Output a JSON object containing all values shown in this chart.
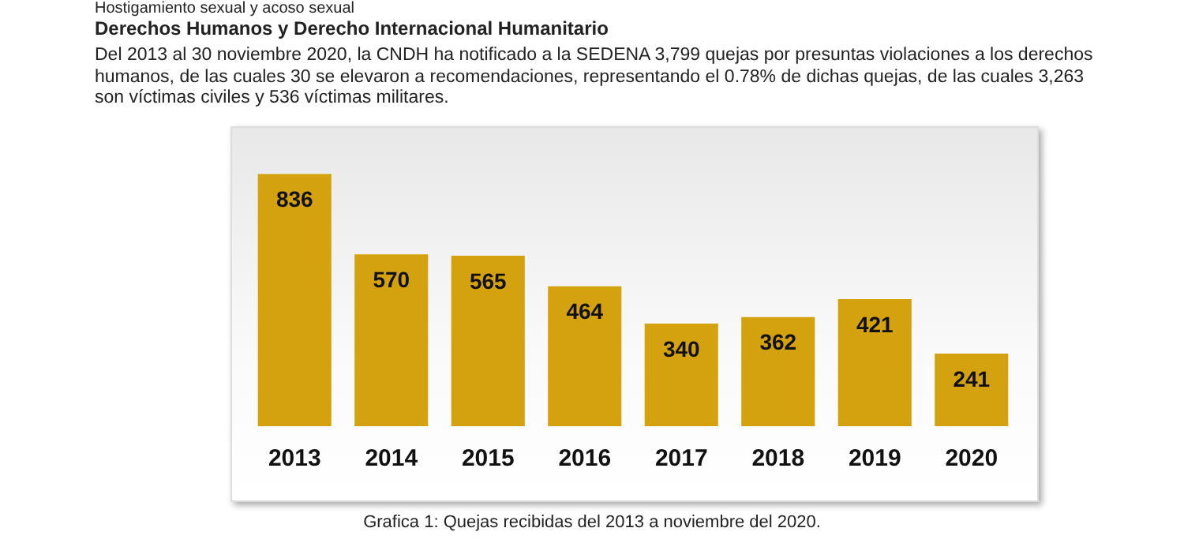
{
  "chart_data": {
    "type": "bar",
    "title": "Derechos Humanos y Derecho Internacional Humanitario",
    "subtitle": "Del 2013 al 30 noviembre 2020, la CNDH ha notificado a la SEDENA 3,799 quejas por presuntas violaciones a los derechos humanos, de las cuales 30 se elevaron a recomendaciones, representando el 0.78% de dichas quejas, de las cuales 3,263 son víctimas civiles y 536 víctimas militares.",
    "annotations": [
      "Hostigamiento sexual y acoso sexual",
      "Grafica 1: Quejas recibidas del 2013 a noviembre del 2020."
    ],
    "categories": [
      "2013",
      "2014",
      "2015",
      "2016",
      "2017",
      "2018",
      "2019",
      "2020"
    ],
    "values": [
      836,
      570,
      565,
      464,
      340,
      362,
      421,
      241
    ],
    "color": "#d4a20f",
    "data_labels": true,
    "grid": false,
    "legend": false
  }
}
